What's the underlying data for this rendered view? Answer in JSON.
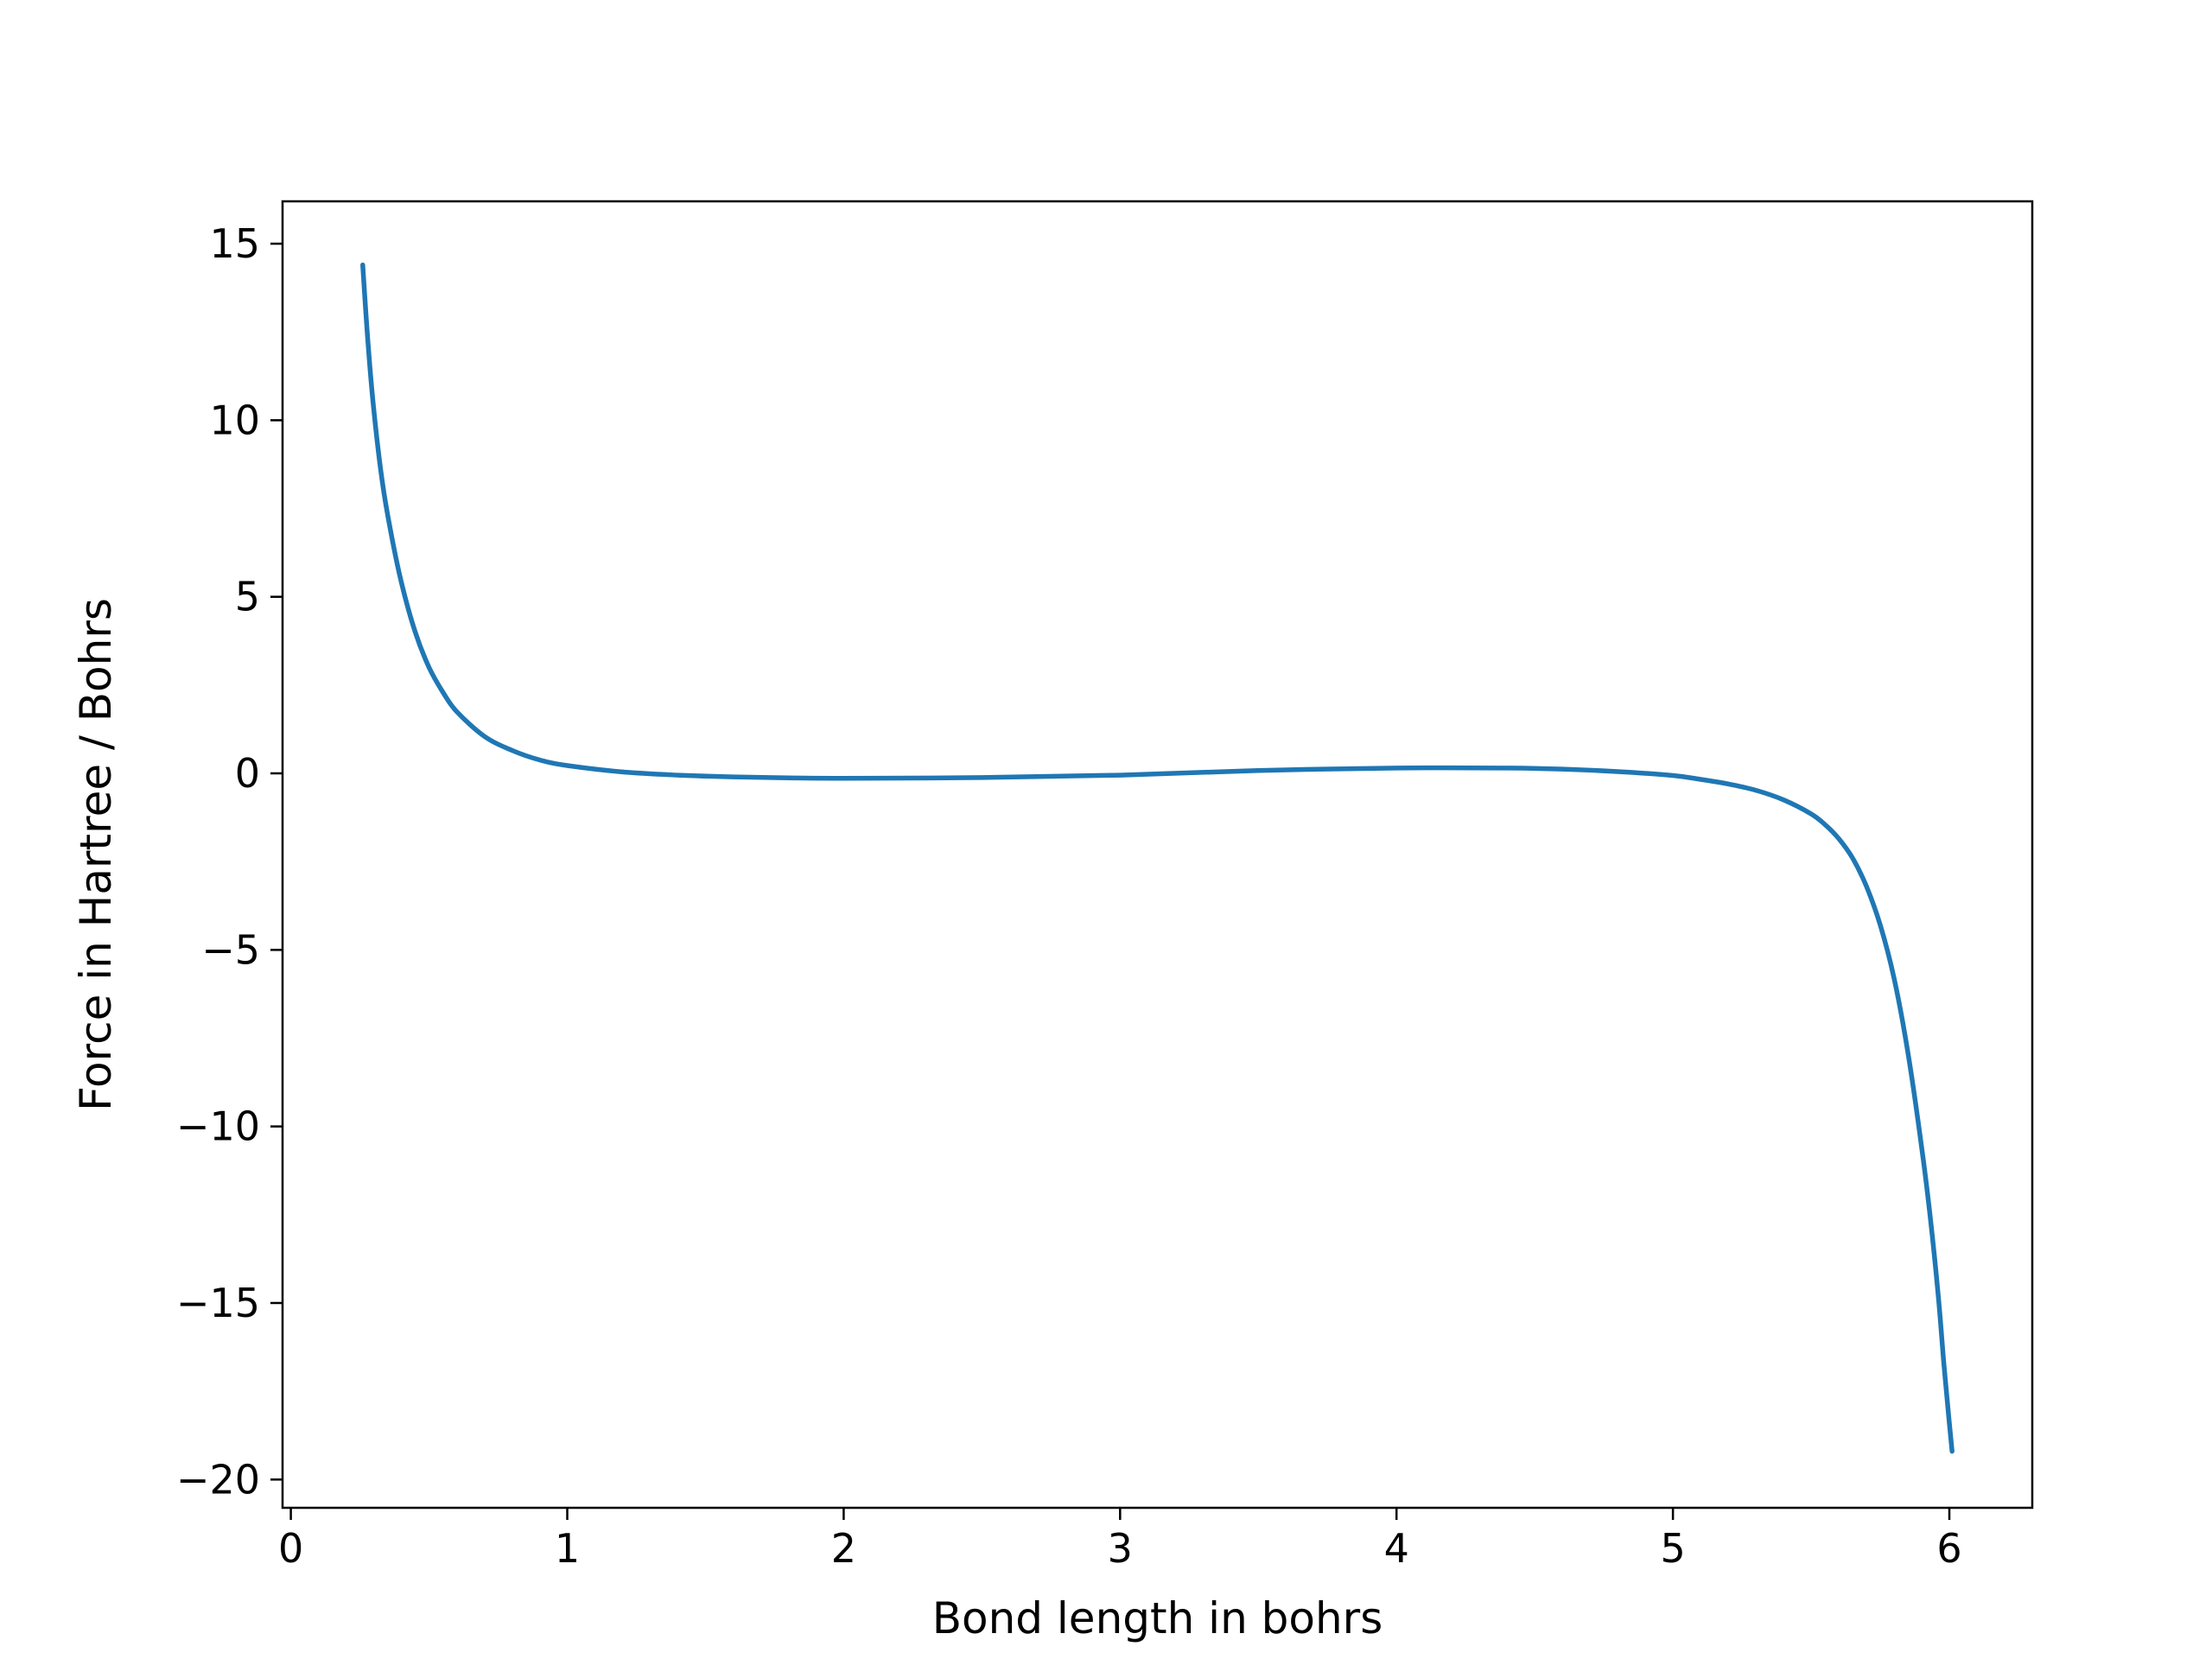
{
  "chart_data": {
    "type": "line",
    "title": "",
    "xlabel": "Bond length in bohrs",
    "ylabel": "Force in Hartree / Bohrs",
    "xlim": [
      -0.03,
      6.3
    ],
    "ylim": [
      -20.8,
      16.2
    ],
    "grid": false,
    "legend": "none",
    "x_ticks": [
      0,
      1,
      2,
      3,
      4,
      5,
      6
    ],
    "x_tick_labels": [
      "0",
      "1",
      "2",
      "3",
      "4",
      "5",
      "6"
    ],
    "y_ticks": [
      15,
      10,
      5,
      0,
      -5,
      -10,
      -15,
      -20
    ],
    "y_tick_labels": [
      "15",
      "10",
      "5",
      "0",
      "−5",
      "−10",
      "−15",
      "−20"
    ],
    "series": [
      {
        "color": "#1f77b4",
        "x": [
          0.26,
          0.28,
          0.3,
          0.33,
          0.36,
          0.4,
          0.45,
          0.5,
          0.55,
          0.6,
          0.7,
          0.8,
          0.9,
          1.0,
          1.2,
          1.4,
          1.6,
          1.8,
          2.0,
          2.5,
          3.0,
          3.5,
          4.0,
          4.4,
          4.6,
          4.8,
          5.0,
          5.1,
          5.2,
          5.3,
          5.4,
          5.5,
          5.55,
          5.6,
          5.65,
          5.7,
          5.75,
          5.8,
          5.85,
          5.9,
          5.93,
          5.96,
          5.98,
          6.0,
          6.01
        ],
        "y": [
          14.4,
          12.1,
          10.3,
          8.3,
          6.9,
          5.4,
          4.0,
          3.0,
          2.3,
          1.75,
          1.05,
          0.65,
          0.38,
          0.22,
          0.04,
          -0.05,
          -0.1,
          -0.13,
          -0.14,
          -0.12,
          -0.05,
          0.08,
          0.15,
          0.15,
          0.12,
          0.05,
          -0.06,
          -0.17,
          -0.3,
          -0.48,
          -0.75,
          -1.15,
          -1.45,
          -1.85,
          -2.4,
          -3.2,
          -4.3,
          -5.8,
          -7.9,
          -10.6,
          -12.5,
          -14.8,
          -16.7,
          -18.4,
          -19.2
        ]
      }
    ]
  }
}
